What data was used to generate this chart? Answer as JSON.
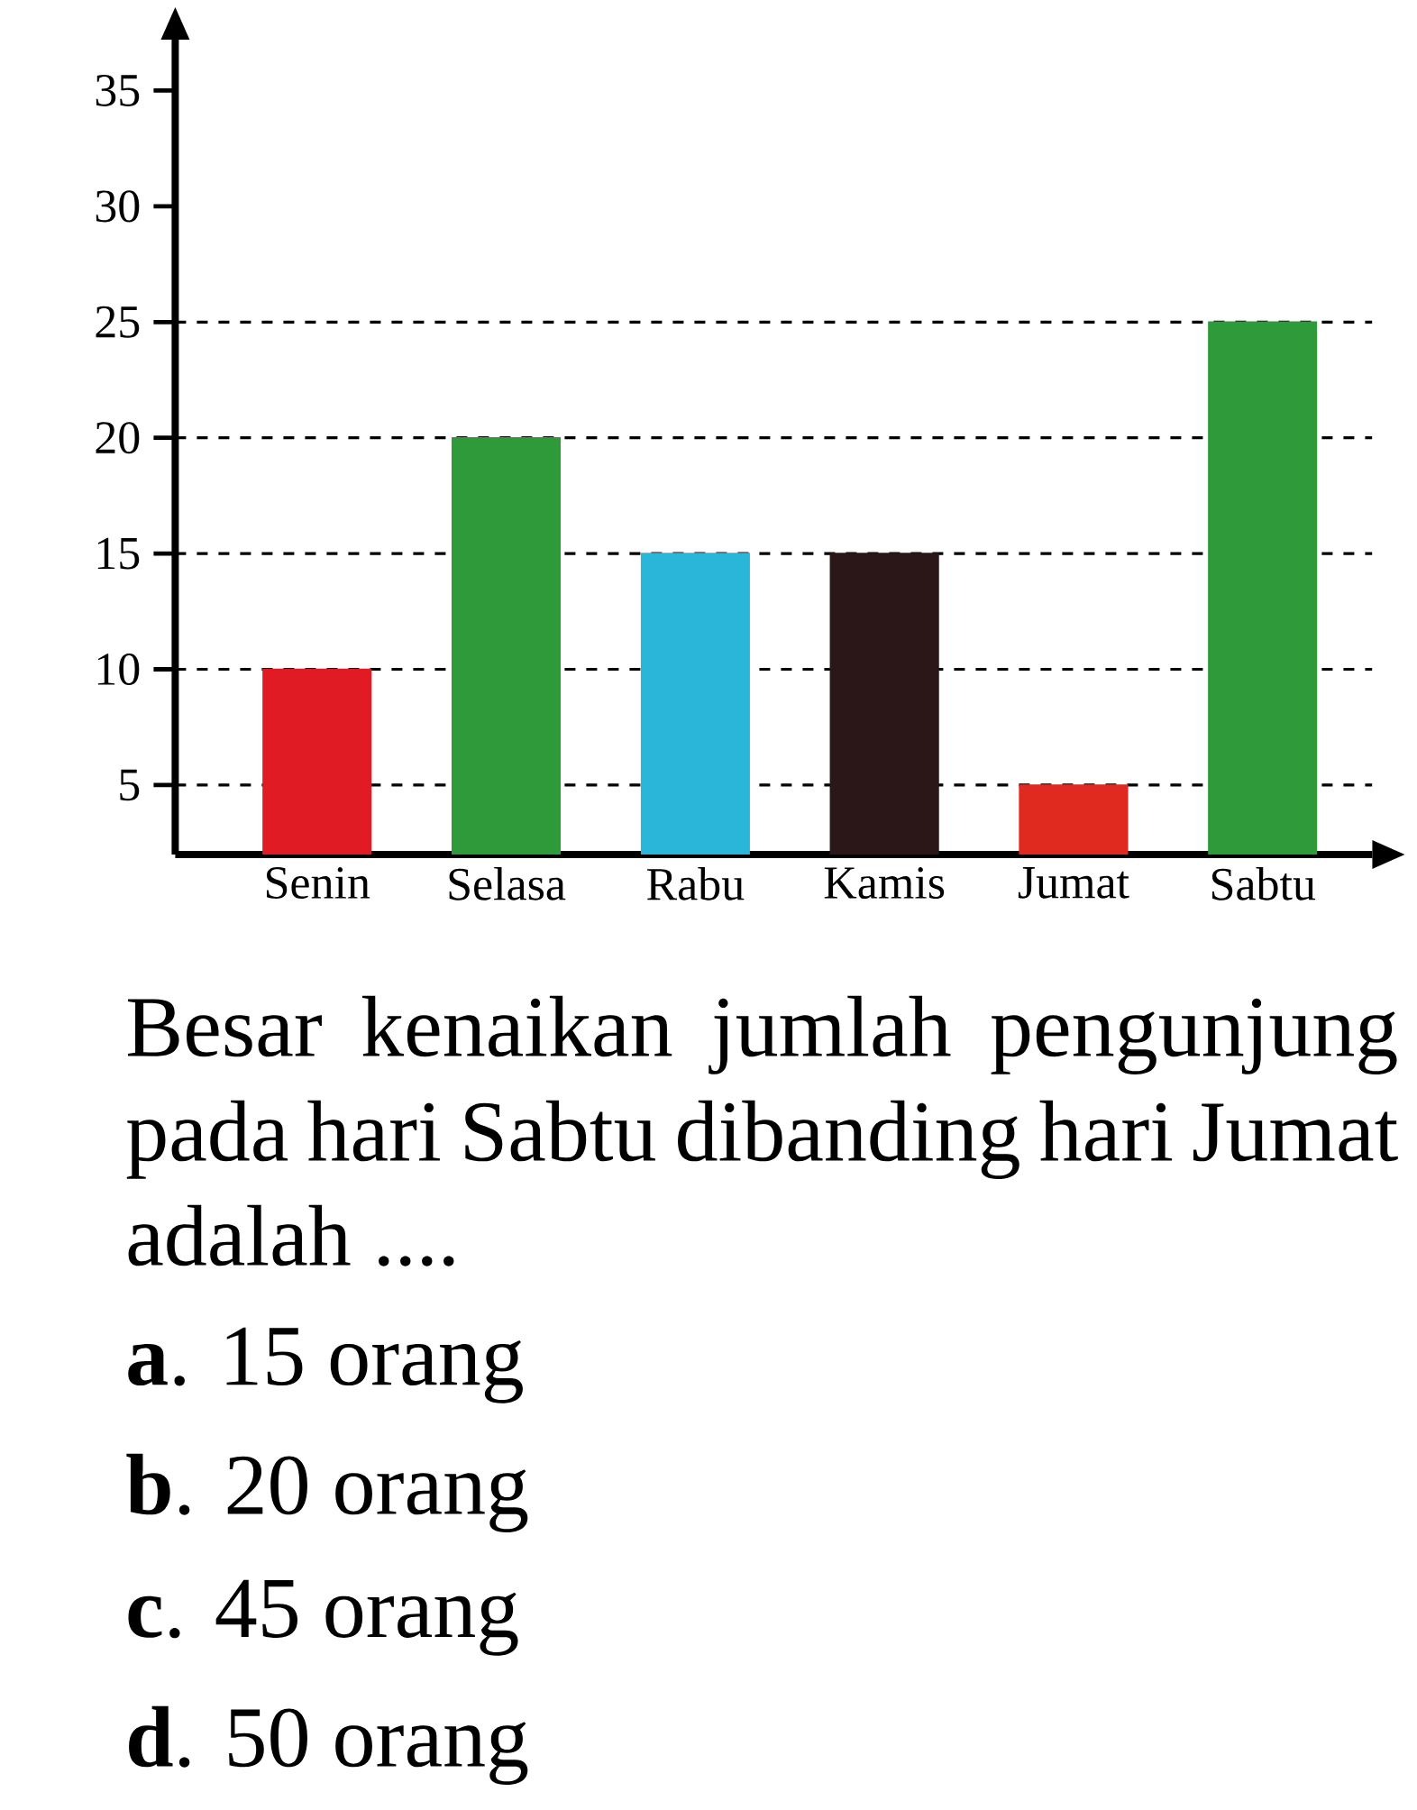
{
  "chart_data": {
    "type": "bar",
    "categories": [
      "Senin",
      "Selasa",
      "Rabu",
      "Kamis",
      "Jumat",
      "Sabtu"
    ],
    "values": [
      10,
      20,
      15,
      15,
      5,
      25
    ],
    "colors": [
      "#e01b24",
      "#2e9a3a",
      "#29b6d8",
      "#2b1718",
      "#e02a20",
      "#2e9a3a"
    ],
    "ylim": [
      2,
      37.2
    ],
    "yticks": [
      5,
      10,
      15,
      20,
      25,
      30,
      35
    ],
    "ref_lines": [
      {
        "axis": "y",
        "value": 5,
        "line_style": "dashed"
      },
      {
        "axis": "y",
        "value": 10,
        "line_style": "dashed"
      },
      {
        "axis": "y",
        "value": 15,
        "line_style": "dashed"
      },
      {
        "axis": "y",
        "value": 20,
        "line_style": "dashed"
      },
      {
        "axis": "y",
        "value": 25,
        "line_style": "dashed"
      }
    ],
    "annotations": [
      "Besar kenaikan jumlah pengunjung pada hari Sabtu dibanding hari Jumat adalah ....",
      "**a**. 15 orang",
      "**b**. 20 orang",
      "**c**. 45 orang",
      "**d**. 50 orang"
    ]
  }
}
